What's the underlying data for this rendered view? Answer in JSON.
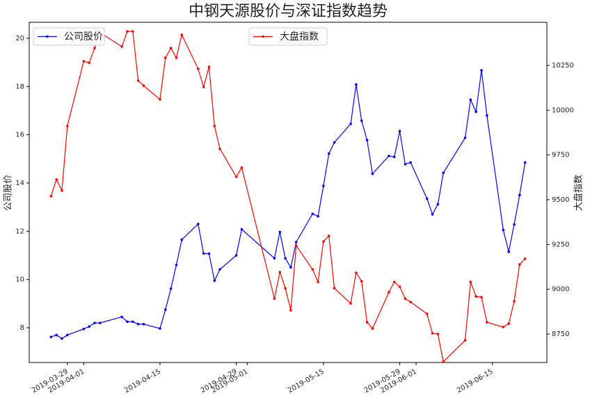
{
  "chart_data": {
    "type": "line",
    "title": "中钢天源股价与深证指数趋势",
    "ylabel": "公司股价",
    "y2label": "大盘指数",
    "x": [
      "2019-03-26",
      "2019-03-27",
      "2019-03-28",
      "2019-03-29",
      "2019-04-01",
      "2019-04-02",
      "2019-04-03",
      "2019-04-04",
      "2019-04-08",
      "2019-04-09",
      "2019-04-10",
      "2019-04-11",
      "2019-04-12",
      "2019-04-15",
      "2019-04-16",
      "2019-04-17",
      "2019-04-18",
      "2019-04-19",
      "2019-04-22",
      "2019-04-23",
      "2019-04-24",
      "2019-04-25",
      "2019-04-26",
      "2019-04-29",
      "2019-04-30",
      "2019-05-06",
      "2019-05-07",
      "2019-05-08",
      "2019-05-09",
      "2019-05-10",
      "2019-05-13",
      "2019-05-14",
      "2019-05-15",
      "2019-05-16",
      "2019-05-17",
      "2019-05-20",
      "2019-05-21",
      "2019-05-22",
      "2019-05-23",
      "2019-05-24",
      "2019-05-27",
      "2019-05-28",
      "2019-05-29",
      "2019-05-30",
      "2019-05-31",
      "2019-06-03",
      "2019-06-04",
      "2019-06-05",
      "2019-06-06",
      "2019-06-10",
      "2019-06-11",
      "2019-06-12",
      "2019-06-13",
      "2019-06-14",
      "2019-06-17",
      "2019-06-18",
      "2019-06-19",
      "2019-06-20",
      "2019-06-21"
    ],
    "series": [
      {
        "name": "公司股价",
        "color": "#0000ff",
        "axis": "y",
        "values": [
          7.62,
          7.7,
          7.55,
          7.7,
          7.95,
          8.05,
          8.2,
          8.2,
          8.45,
          8.25,
          8.25,
          8.15,
          8.15,
          7.97,
          8.75,
          9.62,
          10.6,
          11.65,
          12.3,
          11.08,
          11.07,
          9.95,
          10.42,
          11.0,
          12.08,
          10.88,
          11.97,
          10.88,
          10.5,
          11.55,
          12.72,
          12.62,
          13.88,
          15.22,
          15.68,
          16.45,
          18.08,
          16.58,
          15.78,
          14.38,
          15.12,
          15.08,
          16.15,
          14.78,
          14.85,
          13.35,
          12.7,
          13.12,
          14.42,
          15.87,
          17.45,
          16.95,
          18.67,
          16.8,
          12.05,
          11.15,
          12.28,
          13.5,
          14.85
        ]
      },
      {
        "name": "大盘指数",
        "color": "#ff0000",
        "axis": "y2",
        "values": [
          9520,
          9613,
          9551,
          9912,
          10273,
          10265,
          10347,
          10433,
          10355,
          10440,
          10440,
          10165,
          10137,
          10060,
          10293,
          10347,
          10293,
          10421,
          10231,
          10130,
          10242,
          9912,
          9784,
          9628,
          9679,
          8948,
          9096,
          9006,
          8882,
          9244,
          9111,
          9041,
          9267,
          9298,
          9006,
          8921,
          9092,
          9045,
          8816,
          8781,
          8983,
          9041,
          9014,
          8948,
          8929,
          8863,
          8754,
          8750,
          8595,
          8715,
          9041,
          8960,
          8956,
          8816,
          8789,
          8808,
          8933,
          9139,
          9170
        ]
      }
    ],
    "xlim": [
      "2019-03-22",
      "2019-06-25"
    ],
    "xticks": [
      "2019-03-29",
      "2019-04-01",
      "2019-04-15",
      "2019-04-29",
      "2019-05-01",
      "2019-05-15",
      "2019-05-29",
      "2019-06-01",
      "2019-06-15"
    ],
    "ylim": [
      6.56,
      20.66
    ],
    "yticks": [
      8,
      10,
      12,
      14,
      16,
      18,
      20
    ],
    "y2lim": [
      8591,
      10491
    ],
    "y2ticks": [
      8750,
      9000,
      9250,
      9500,
      9750,
      10000,
      10250
    ],
    "grid": false
  }
}
